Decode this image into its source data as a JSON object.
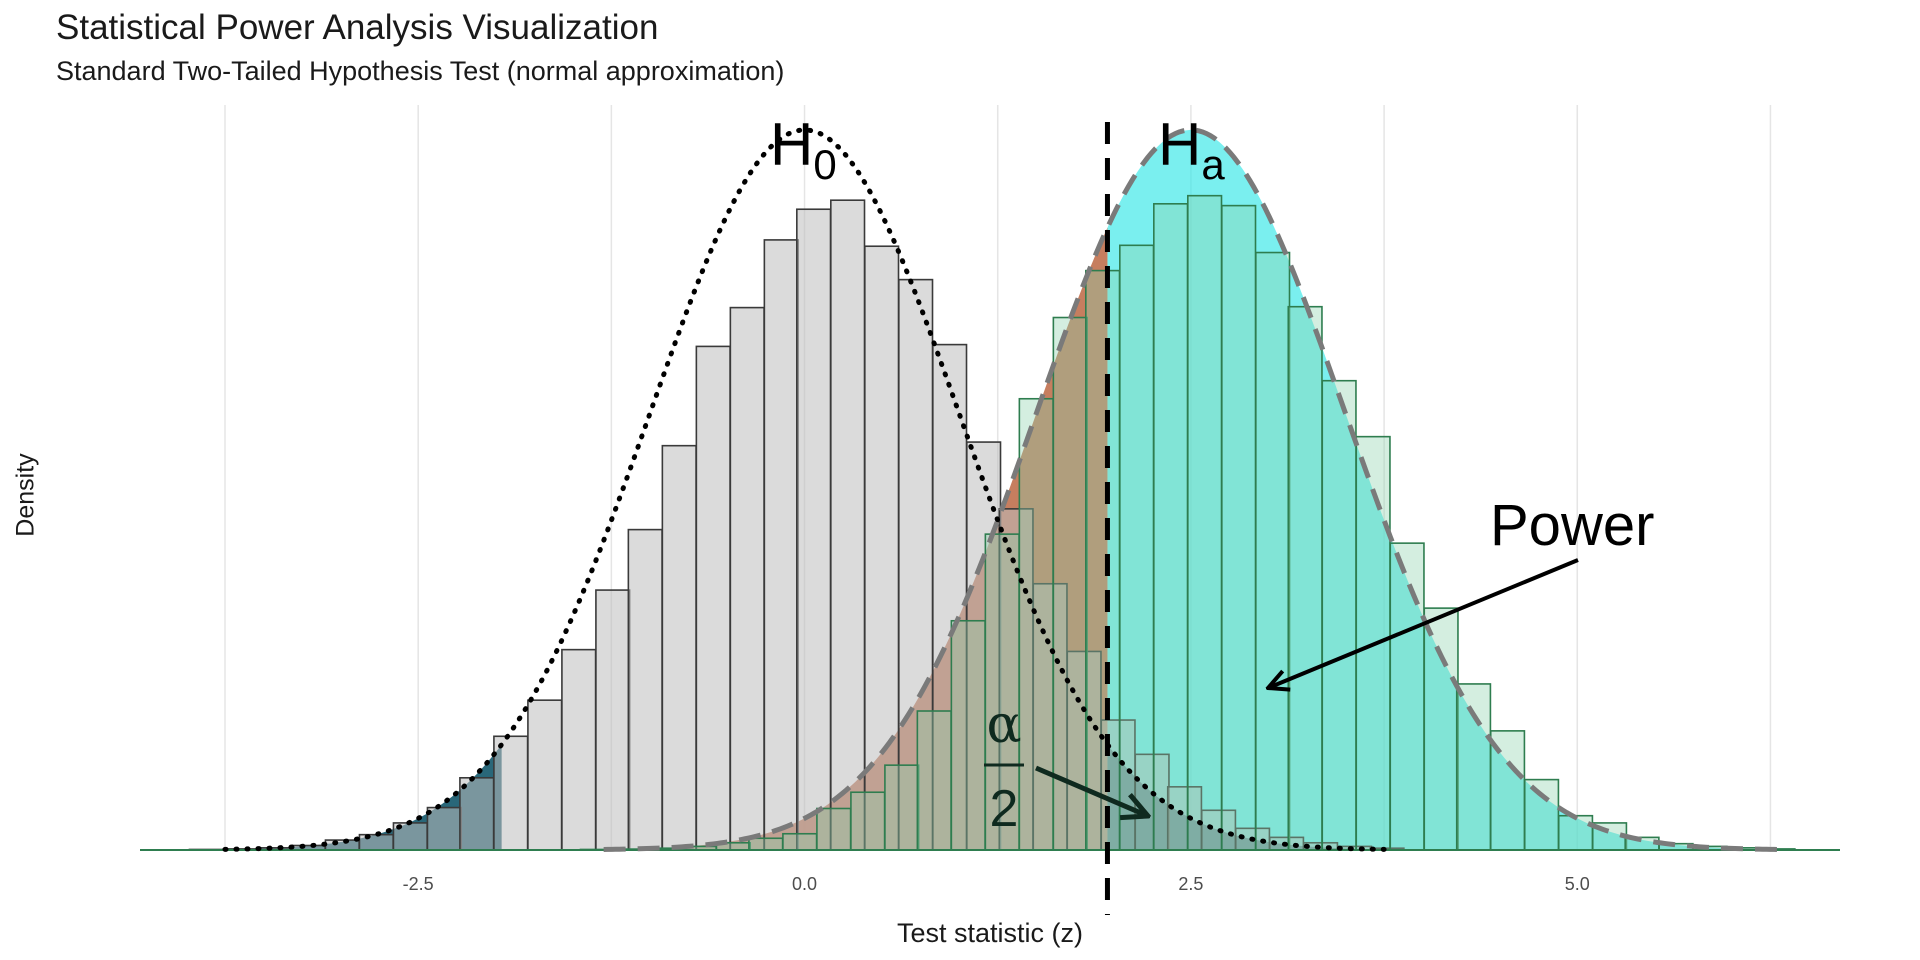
{
  "chart_data": {
    "type": "histogram-density",
    "title": "Statistical Power Analysis Visualization",
    "subtitle": "Standard Two-Tailed Hypothesis Test (normal approximation)",
    "xlabel": "Test statistic (z)",
    "ylabel": "Density",
    "xlim": [
      -4.3,
      6.7
    ],
    "ylim": [
      0,
      0.43
    ],
    "x_ticks": [
      -2.5,
      0.0,
      2.5,
      5.0
    ],
    "x_tick_labels": [
      "-2.5",
      "0.0",
      "2.5",
      "5.0"
    ],
    "critical_value": 1.96,
    "bin_width": 0.218,
    "series": [
      {
        "name": "H0",
        "distribution": "normal",
        "mean": 0,
        "sd": 1,
        "bin_starts": [
          -3.98,
          -3.76,
          -3.54,
          -3.32,
          -3.1,
          -2.88,
          -2.66,
          -2.44,
          -2.23,
          -2.01,
          -1.79,
          -1.57,
          -1.35,
          -1.14,
          -0.92,
          -0.7,
          -0.48,
          -0.26,
          -0.05,
          0.17,
          0.39,
          0.61,
          0.83,
          1.05,
          1.26,
          1.48,
          1.7,
          1.92,
          2.14,
          2.35,
          2.57,
          2.79,
          3.01,
          3.23,
          3.45,
          3.66
        ],
        "densities": [
          0.0003,
          0.0006,
          0.0012,
          0.0025,
          0.0055,
          0.0085,
          0.015,
          0.0235,
          0.04,
          0.063,
          0.083,
          0.111,
          0.144,
          0.1775,
          0.224,
          0.279,
          0.3005,
          0.338,
          0.355,
          0.36,
          0.3345,
          0.316,
          0.28,
          0.226,
          0.189,
          0.1475,
          0.11,
          0.072,
          0.053,
          0.035,
          0.022,
          0.012,
          0.007,
          0.004,
          0.002,
          0.001
        ]
      },
      {
        "name": "Ha",
        "distribution": "normal",
        "mean": 2.5,
        "sd": 1,
        "bin_starts": [
          -1.45,
          -1.23,
          -1.01,
          -0.79,
          -0.57,
          -0.36,
          -0.14,
          0.08,
          0.3,
          0.52,
          0.73,
          0.95,
          1.17,
          1.39,
          1.61,
          1.82,
          2.04,
          2.26,
          2.48,
          2.7,
          2.92,
          3.13,
          3.35,
          3.57,
          3.79,
          4.01,
          4.22,
          4.44,
          4.66,
          4.88,
          5.1,
          5.31,
          5.53,
          5.75,
          5.97,
          6.19
        ],
        "densities": [
          0.0003,
          0.0005,
          0.001,
          0.002,
          0.004,
          0.0065,
          0.009,
          0.023,
          0.032,
          0.047,
          0.077,
          0.127,
          0.175,
          0.25,
          0.295,
          0.321,
          0.335,
          0.358,
          0.3625,
          0.357,
          0.331,
          0.301,
          0.26,
          0.229,
          0.17,
          0.134,
          0.092,
          0.066,
          0.039,
          0.019,
          0.015,
          0.007,
          0.0035,
          0.002,
          0.0012,
          0.0006
        ]
      }
    ],
    "annotations": {
      "h0_label": "H",
      "h0_sub": "0",
      "ha_label": "H",
      "ha_sub": "a",
      "power_label": "Power",
      "alpha_label": "α",
      "alpha_denominator": "2"
    },
    "colors": {
      "h0_bar_fill": "#bdbdbd",
      "h0_bar_stroke": "#3a3a3a",
      "ha_bar_fill": "#8fd3ad",
      "ha_bar_stroke": "#2e7d4f",
      "power_fill": "#33e6e6",
      "beta_fill": "#c0704e",
      "alpha_fill": "#1e5f72",
      "h0_curve": "#000000",
      "ha_curve": "#7a7a7a",
      "grid": "#e5e5e5",
      "critical_line": "#000000",
      "baseline": "#2e7d4f"
    }
  }
}
